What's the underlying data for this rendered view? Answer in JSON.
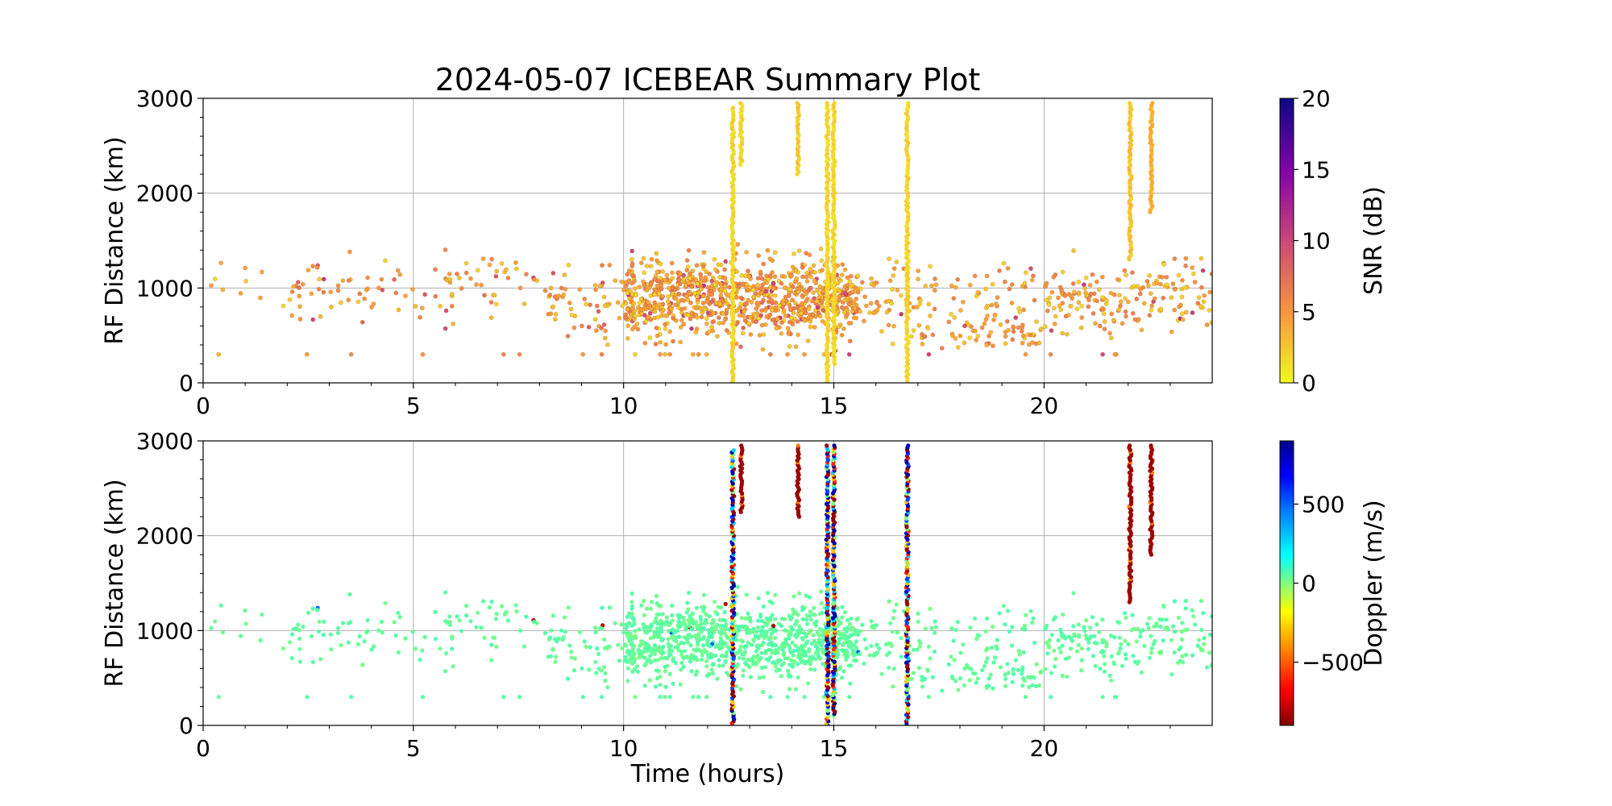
{
  "title": "2024-05-07 ICEBEAR Summary Plot",
  "colors": {
    "grid": "#b0b0b0",
    "frame": "#000000"
  },
  "chart_data": [
    {
      "type": "scatter",
      "name": "snr-panel",
      "xlabel": "",
      "ylabel": "RF Distance (km)",
      "xlim": [
        0,
        24
      ],
      "ylim": [
        0,
        3000
      ],
      "xticks": [
        "0",
        "5",
        "10",
        "15",
        "20"
      ],
      "xtick_values": [
        0,
        5,
        10,
        15,
        20
      ],
      "yticks": [
        "0",
        "1000",
        "2000",
        "3000"
      ],
      "ytick_values": [
        0,
        1000,
        2000,
        3000
      ],
      "grid": true,
      "colorbar": {
        "label": "SNR (dB)",
        "colormap": "plasma_r",
        "range": [
          0,
          20
        ],
        "ticks": [
          "0",
          "5",
          "10",
          "15",
          "20"
        ],
        "tick_values": [
          0,
          5,
          10,
          15,
          20
        ]
      },
      "clusters": [
        {
          "x_range": [
            0,
            24
          ],
          "y_range": [
            300,
            1700
          ],
          "density": "scattered",
          "typical_value": "2–6 dB"
        },
        {
          "x_range": [
            10,
            15.6
          ],
          "y_range": [
            400,
            1800
          ],
          "density": "dense",
          "typical_value": "2–6 dB"
        }
      ],
      "streaks": [
        {
          "x": 12.6,
          "y_range": [
            0,
            2900
          ],
          "value": 1
        },
        {
          "x": 12.8,
          "y_range": [
            2300,
            2950
          ],
          "value": 1
        },
        {
          "x": 14.15,
          "y_range": [
            2200,
            2950
          ],
          "value": 1.5
        },
        {
          "x": 14.85,
          "y_range": [
            0,
            2950
          ],
          "value": 1
        },
        {
          "x": 15.0,
          "y_range": [
            200,
            2950
          ],
          "value": 1
        },
        {
          "x": 16.75,
          "y_range": [
            0,
            2950
          ],
          "value": 1
        },
        {
          "x": 22.05,
          "y_range": [
            1300,
            2950
          ],
          "value": 2
        },
        {
          "x": 22.55,
          "y_range": [
            1800,
            2950
          ],
          "value": 3
        }
      ]
    },
    {
      "type": "scatter",
      "name": "doppler-panel",
      "xlabel": "Time (hours)",
      "ylabel": "RF Distance (km)",
      "xlim": [
        0,
        24
      ],
      "ylim": [
        0,
        3000
      ],
      "xticks": [
        "0",
        "5",
        "10",
        "15",
        "20"
      ],
      "xtick_values": [
        0,
        5,
        10,
        15,
        20
      ],
      "yticks": [
        "0",
        "1000",
        "2000",
        "3000"
      ],
      "ytick_values": [
        0,
        1000,
        2000,
        3000
      ],
      "grid": true,
      "colorbar": {
        "label": "Doppler (m/s)",
        "colormap": "jet_r",
        "range": [
          -900,
          900
        ],
        "ticks": [
          "−500",
          "0",
          "500"
        ],
        "tick_values": [
          -500,
          0,
          500
        ]
      },
      "clusters": [
        {
          "x_range": [
            0,
            24
          ],
          "y_range": [
            300,
            1700
          ],
          "density": "scattered",
          "typical_value": "≈50 m/s"
        },
        {
          "x_range": [
            10,
            15.6
          ],
          "y_range": [
            400,
            1800
          ],
          "density": "dense",
          "typical_value": "≈50 m/s"
        }
      ],
      "streaks": [
        {
          "x": 12.6,
          "y_range": [
            0,
            2900
          ],
          "value": "mixed"
        },
        {
          "x": 12.8,
          "y_range": [
            2250,
            2950
          ],
          "value": -850
        },
        {
          "x": 14.15,
          "y_range": [
            2200,
            2950
          ],
          "value": -850
        },
        {
          "x": 14.85,
          "y_range": [
            0,
            2950
          ],
          "value": "mixed"
        },
        {
          "x": 15.0,
          "y_range": [
            100,
            2950
          ],
          "value": "mixed"
        },
        {
          "x": 16.75,
          "y_range": [
            0,
            2950
          ],
          "value": "mixed"
        },
        {
          "x": 22.05,
          "y_range": [
            1300,
            2950
          ],
          "value": -850
        },
        {
          "x": 22.55,
          "y_range": [
            1800,
            2950
          ],
          "value": -850
        }
      ]
    }
  ]
}
